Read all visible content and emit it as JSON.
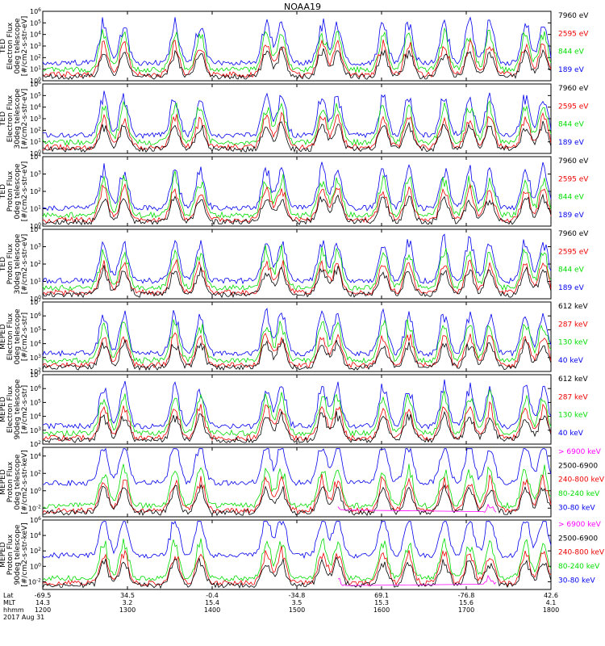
{
  "title": "NOAA19",
  "date_label": "2017 Aug 31",
  "colors": {
    "black": "#000000",
    "red": "#ee0000",
    "green": "#00dd00",
    "blue": "#0000ee",
    "magenta": "#ff00ff"
  },
  "footer": {
    "row_labels": [
      "Lat",
      "MLT",
      "hhmm"
    ],
    "columns": [
      {
        "lat": "-69.5",
        "mlt": "14.3",
        "hhmm": "1200"
      },
      {
        "lat": "34.5",
        "mlt": "3.2",
        "hhmm": "1300"
      },
      {
        "lat": "-0.4",
        "mlt": "15.4",
        "hhmm": "1400"
      },
      {
        "lat": "-34.8",
        "mlt": "3.5",
        "hhmm": "1500"
      },
      {
        "lat": "69.1",
        "mlt": "15.3",
        "hhmm": "1600"
      },
      {
        "lat": "-76.8",
        "mlt": "15.6",
        "hhmm": "1700"
      },
      {
        "lat": "42.6",
        "mlt": "4.1",
        "hhmm": "1800"
      }
    ]
  },
  "chart_data": [
    {
      "type": "line",
      "panel_id": "ted-e-0",
      "ylabel_lines": [
        "TED",
        "Electron Flux",
        "0deg telescope",
        "[#/cm2-s-str-eV]"
      ],
      "y_ticks": [
        "10^0",
        "10^1",
        "10^2",
        "10^3",
        "10^4",
        "10^5",
        "10^6"
      ],
      "ylim_log10": [
        0,
        6
      ],
      "series": [
        {
          "name": "7960 eV",
          "color": "black"
        },
        {
          "name": "2595 eV",
          "color": "red"
        },
        {
          "name": "844 eV",
          "color": "green"
        },
        {
          "name": "189 eV",
          "color": "blue"
        }
      ]
    },
    {
      "type": "line",
      "panel_id": "ted-e-30",
      "ylabel_lines": [
        "TED",
        "Electron Flux",
        "30deg telescope",
        "[#/cm2-s-str-eV]"
      ],
      "y_ticks": [
        "10^0",
        "10^1",
        "10^2",
        "10^3",
        "10^4",
        "10^5",
        "10^6"
      ],
      "ylim_log10": [
        0,
        6
      ],
      "series": [
        {
          "name": "7960 eV",
          "color": "black"
        },
        {
          "name": "2595 eV",
          "color": "red"
        },
        {
          "name": "844 eV",
          "color": "green"
        },
        {
          "name": "189 eV",
          "color": "blue"
        }
      ]
    },
    {
      "type": "line",
      "panel_id": "ted-p-0",
      "ylabel_lines": [
        "TED",
        "Proton Flux",
        "0deg telescope",
        "[#/cm2-s-str-eV]"
      ],
      "y_ticks": [
        "10^0",
        "10^1",
        "10^2",
        "10^3",
        "10^4"
      ],
      "ylim_log10": [
        0,
        4
      ],
      "series": [
        {
          "name": "7960 eV",
          "color": "black"
        },
        {
          "name": "2595 eV",
          "color": "red"
        },
        {
          "name": "844 eV",
          "color": "green"
        },
        {
          "name": "189 eV",
          "color": "blue"
        }
      ]
    },
    {
      "type": "line",
      "panel_id": "ted-p-30",
      "ylabel_lines": [
        "TED",
        "Proton Flux",
        "30deg telescope",
        "[#/cm2-s-str-eV]"
      ],
      "y_ticks": [
        "10^0",
        "10^1",
        "10^2",
        "10^3",
        "10^4"
      ],
      "ylim_log10": [
        0,
        4
      ],
      "series": [
        {
          "name": "7960 eV",
          "color": "black"
        },
        {
          "name": "2595 eV",
          "color": "red"
        },
        {
          "name": "844 eV",
          "color": "green"
        },
        {
          "name": "189 eV",
          "color": "blue"
        }
      ]
    },
    {
      "type": "line",
      "panel_id": "meped-e-0",
      "ylabel_lines": [
        "MEPED",
        "Electron Flux",
        "0deg telescope",
        "[#/cm2-s-str]"
      ],
      "y_ticks": [
        "10^2",
        "10^3",
        "10^4",
        "10^5",
        "10^6",
        "10^7"
      ],
      "ylim_log10": [
        2,
        7
      ],
      "series": [
        {
          "name": "612 keV",
          "color": "black"
        },
        {
          "name": "287 keV",
          "color": "red"
        },
        {
          "name": "130 keV",
          "color": "green"
        },
        {
          "name": "40 keV",
          "color": "blue"
        }
      ]
    },
    {
      "type": "line",
      "panel_id": "meped-e-90",
      "ylabel_lines": [
        "MEPED",
        "Electron Flux",
        "90deg telescope",
        "[#/cm2-s-str]"
      ],
      "y_ticks": [
        "10^2",
        "10^3",
        "10^4",
        "10^5",
        "10^6",
        "10^7"
      ],
      "ylim_log10": [
        2,
        7
      ],
      "series": [
        {
          "name": "612 keV",
          "color": "black"
        },
        {
          "name": "287 keV",
          "color": "red"
        },
        {
          "name": "130 keV",
          "color": "green"
        },
        {
          "name": "40 keV",
          "color": "blue"
        }
      ]
    },
    {
      "type": "line",
      "panel_id": "meped-p-0",
      "ylabel_lines": [
        "MEPED",
        "Proton Flux",
        "0deg telescope",
        "[#/cm2-s-str-keV]"
      ],
      "y_ticks": [
        "10^-2",
        "10^0",
        "10^2",
        "10^4"
      ],
      "ylim_log10": [
        -3,
        5
      ],
      "series": [
        {
          "name": "> 6900 keV",
          "color": "magenta"
        },
        {
          "name": "2500-6900",
          "color": "black"
        },
        {
          "name": "240-800 keV",
          "color": "red"
        },
        {
          "name": "80-240 keV",
          "color": "green"
        },
        {
          "name": "30-80 keV",
          "color": "blue"
        }
      ]
    },
    {
      "type": "line",
      "panel_id": "meped-p-90",
      "ylabel_lines": [
        "MEPED",
        "Proton Flux",
        "90deg telescope",
        "[#/cm2-s-str-keV]"
      ],
      "y_ticks": [
        "10^-2",
        "10^0",
        "10^2",
        "10^4",
        "10^6"
      ],
      "ylim_log10": [
        -3,
        6
      ],
      "series": [
        {
          "name": "> 6900 keV",
          "color": "magenta"
        },
        {
          "name": "2500-6900",
          "color": "black"
        },
        {
          "name": "240-800 keV",
          "color": "red"
        },
        {
          "name": "80-240 keV",
          "color": "green"
        },
        {
          "name": "30-80 keV",
          "color": "blue"
        }
      ]
    }
  ]
}
